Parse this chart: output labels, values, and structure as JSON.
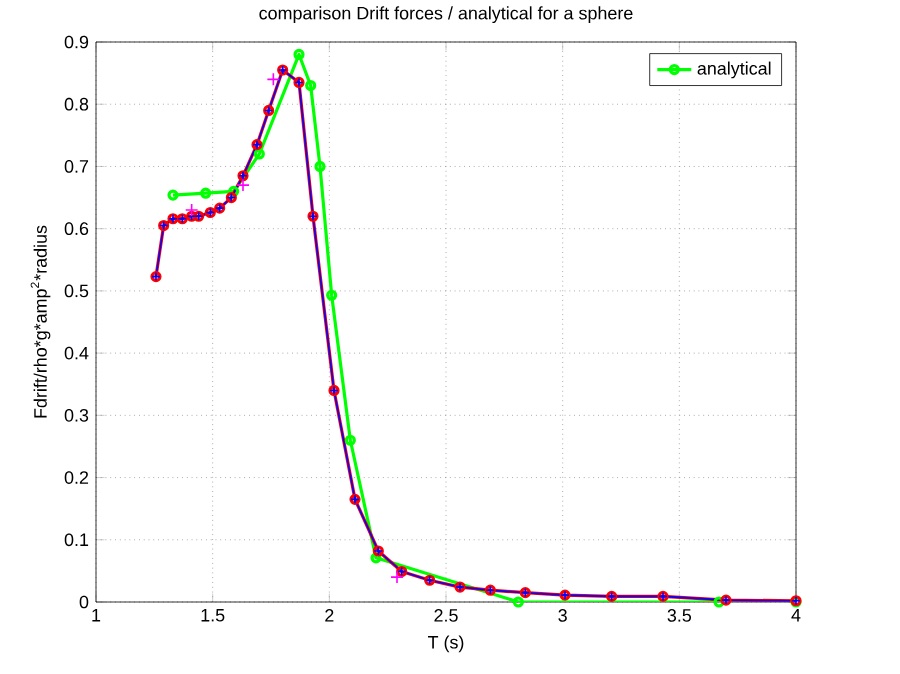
{
  "chart_data": {
    "type": "line",
    "title": "comparison Drift forces / analytical for a sphere",
    "xlabel": "T (s)",
    "ylabel": "Fdrift/rho*g*amp$^{2}$*radius",
    "xlim": [
      1,
      4
    ],
    "ylim": [
      0,
      0.9
    ],
    "xticks": [
      1,
      1.5,
      2,
      2.5,
      3,
      3.5,
      4
    ],
    "yticks": [
      0,
      0.1,
      0.2,
      0.3,
      0.4,
      0.5,
      0.6,
      0.7,
      0.8,
      0.9
    ],
    "grid": true,
    "legend": "top right",
    "series": [
      {
        "name": "analytical",
        "color": "#00ff00",
        "marker": "circle",
        "x": [
          1.33,
          1.47,
          1.59,
          1.7,
          1.87,
          1.92,
          1.96,
          2.01,
          2.09,
          2.2,
          2.81,
          3.67,
          4.0
        ],
        "values": [
          0.654,
          0.657,
          0.66,
          0.72,
          0.88,
          0.83,
          0.7,
          0.493,
          0.26,
          0.071,
          0.0,
          0.0,
          0.0
        ]
      },
      {
        "color": "#ff0000",
        "marker": "circle",
        "x": [
          1.257,
          1.29,
          1.33,
          1.37,
          1.41,
          1.44,
          1.49,
          1.53,
          1.58,
          1.63,
          1.69,
          1.74,
          1.8,
          1.87,
          1.93,
          2.02,
          2.11,
          2.21,
          2.31,
          2.43,
          2.56,
          2.69,
          2.84,
          3.01,
          3.21,
          3.43,
          3.7,
          4.0
        ],
        "values": [
          0.523,
          0.605,
          0.616,
          0.616,
          0.62,
          0.62,
          0.626,
          0.633,
          0.65,
          0.685,
          0.735,
          0.79,
          0.855,
          0.835,
          0.62,
          0.34,
          0.165,
          0.082,
          0.049,
          0.035,
          0.024,
          0.019,
          0.015,
          0.011,
          0.009,
          0.009,
          0.003,
          0.002
        ]
      },
      {
        "color": "#0000ff",
        "marker": "cross",
        "x": [
          1.257,
          1.29,
          1.33,
          1.37,
          1.41,
          1.44,
          1.49,
          1.53,
          1.58,
          1.63,
          1.69,
          1.74,
          1.8,
          1.87,
          1.93,
          2.02,
          2.11,
          2.21,
          2.31,
          2.43,
          2.56,
          2.69,
          2.84,
          3.01,
          3.21,
          3.43,
          3.7,
          4.0
        ],
        "values": [
          0.523,
          0.605,
          0.616,
          0.616,
          0.62,
          0.62,
          0.626,
          0.633,
          0.65,
          0.685,
          0.735,
          0.79,
          0.855,
          0.835,
          0.62,
          0.34,
          0.165,
          0.082,
          0.049,
          0.035,
          0.024,
          0.019,
          0.015,
          0.011,
          0.009,
          0.009,
          0.003,
          0.002
        ]
      },
      {
        "type": "scatter",
        "color": "#ff00ff",
        "marker": "cross",
        "x": [
          1.41,
          1.63,
          1.76,
          2.29
        ],
        "values": [
          0.63,
          0.67,
          0.84,
          0.04
        ]
      }
    ]
  }
}
